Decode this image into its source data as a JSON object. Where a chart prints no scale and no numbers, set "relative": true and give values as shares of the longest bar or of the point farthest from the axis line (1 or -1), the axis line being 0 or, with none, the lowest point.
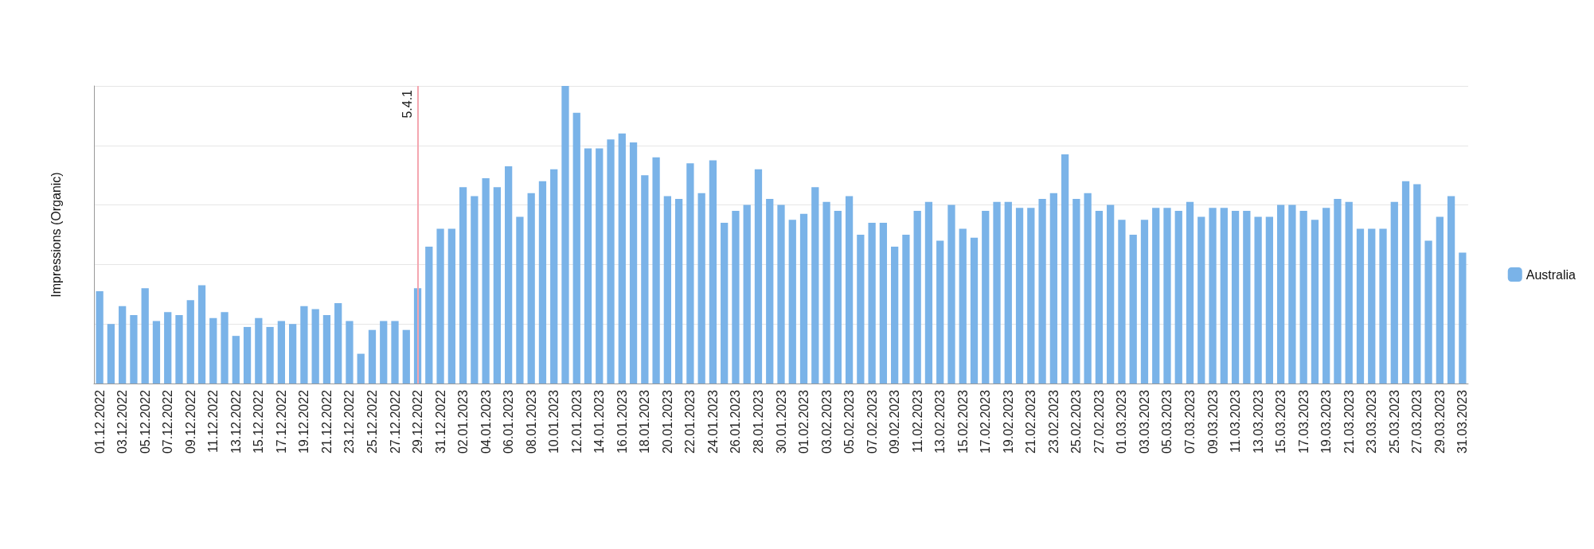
{
  "chart_data": {
    "type": "bar",
    "ylabel": "Impressions (Organic)",
    "relative": true,
    "grid": "y",
    "legend": "right",
    "categories": [
      "01.12.2022",
      null,
      "03.12.2022",
      null,
      "05.12.2022",
      null,
      "07.12.2022",
      null,
      "09.12.2022",
      null,
      "11.12.2022",
      null,
      "13.12.2022",
      null,
      "15.12.2022",
      null,
      "17.12.2022",
      null,
      "19.12.2022",
      null,
      "21.12.2022",
      null,
      "23.12.2022",
      null,
      "25.12.2022",
      null,
      "27.12.2022",
      null,
      "29.12.2022",
      null,
      "31.12.2022",
      null,
      "02.01.2023",
      null,
      "04.01.2023",
      null,
      "06.01.2023",
      null,
      "08.01.2023",
      null,
      "10.01.2023",
      null,
      "12.01.2023",
      null,
      "14.01.2023",
      null,
      "16.01.2023",
      null,
      "18.01.2023",
      null,
      "20.01.2023",
      null,
      "22.01.2023",
      null,
      "24.01.2023",
      null,
      "26.01.2023",
      null,
      "28.01.2023",
      null,
      "30.01.2023",
      null,
      "01.02.2023",
      null,
      "03.02.2023",
      null,
      "05.02.2023",
      null,
      "07.02.2023",
      null,
      "09.02.2023",
      null,
      "11.02.2023",
      null,
      "13.02.2023",
      null,
      "15.02.2023",
      null,
      "17.02.2023",
      null,
      "19.02.2023",
      null,
      "21.02.2023",
      null,
      "23.02.2023",
      null,
      "25.02.2023",
      null,
      "27.02.2023",
      null,
      "01.03.2023",
      null,
      "03.03.2023",
      null,
      "05.03.2023",
      null,
      "07.03.2023",
      null,
      "09.03.2023",
      null,
      "11.03.2023",
      null,
      "13.03.2023",
      null,
      "15.03.2023",
      null,
      "17.03.2023",
      null,
      "19.03.2023",
      null,
      "21.03.2023",
      null,
      "23.03.2023",
      null,
      "25.03.2023",
      null,
      "27.03.2023",
      null,
      "29.03.2023",
      null,
      "31.03.2023"
    ],
    "series": [
      {
        "name": "Australia",
        "color": "#7ab3e8",
        "values": [
          0.31,
          0.2,
          0.26,
          0.23,
          0.32,
          0.21,
          0.24,
          0.23,
          0.28,
          0.33,
          0.22,
          0.24,
          0.16,
          0.19,
          0.22,
          0.19,
          0.21,
          0.2,
          0.26,
          0.25,
          0.23,
          0.27,
          0.21,
          0.1,
          0.18,
          0.21,
          0.21,
          0.18,
          0.32,
          0.46,
          0.52,
          0.52,
          0.66,
          0.63,
          0.69,
          0.66,
          0.73,
          0.56,
          0.64,
          0.68,
          0.72,
          1,
          0.91,
          0.79,
          0.79,
          0.82,
          0.84,
          0.81,
          0.7,
          0.76,
          0.63,
          0.62,
          0.74,
          0.64,
          0.75,
          0.54,
          0.58,
          0.6,
          0.72,
          0.62,
          0.6,
          0.55,
          0.57,
          0.66,
          0.61,
          0.58,
          0.63,
          0.5,
          0.54,
          0.54,
          0.46,
          0.5,
          0.58,
          0.61,
          0.48,
          0.6,
          0.52,
          0.49,
          0.58,
          0.61,
          0.61,
          0.59,
          0.59,
          0.62,
          0.64,
          0.77,
          0.62,
          0.64,
          0.58,
          0.6,
          0.55,
          0.5,
          0.55,
          0.59,
          0.59,
          0.58,
          0.61,
          0.56,
          0.59,
          0.59,
          0.58,
          0.58,
          0.56,
          0.56,
          0.6,
          0.6,
          0.58,
          0.55,
          0.59,
          0.62,
          0.61,
          0.52,
          0.52,
          0.52,
          0.61,
          0.68,
          0.67,
          0.48,
          0.56,
          0.63,
          0.44
        ]
      }
    ],
    "ref_lines": [
      {
        "axis": "x",
        "value": "29.12.2022",
        "label": "5.4.1",
        "color": "#f4a6b0"
      }
    ]
  }
}
